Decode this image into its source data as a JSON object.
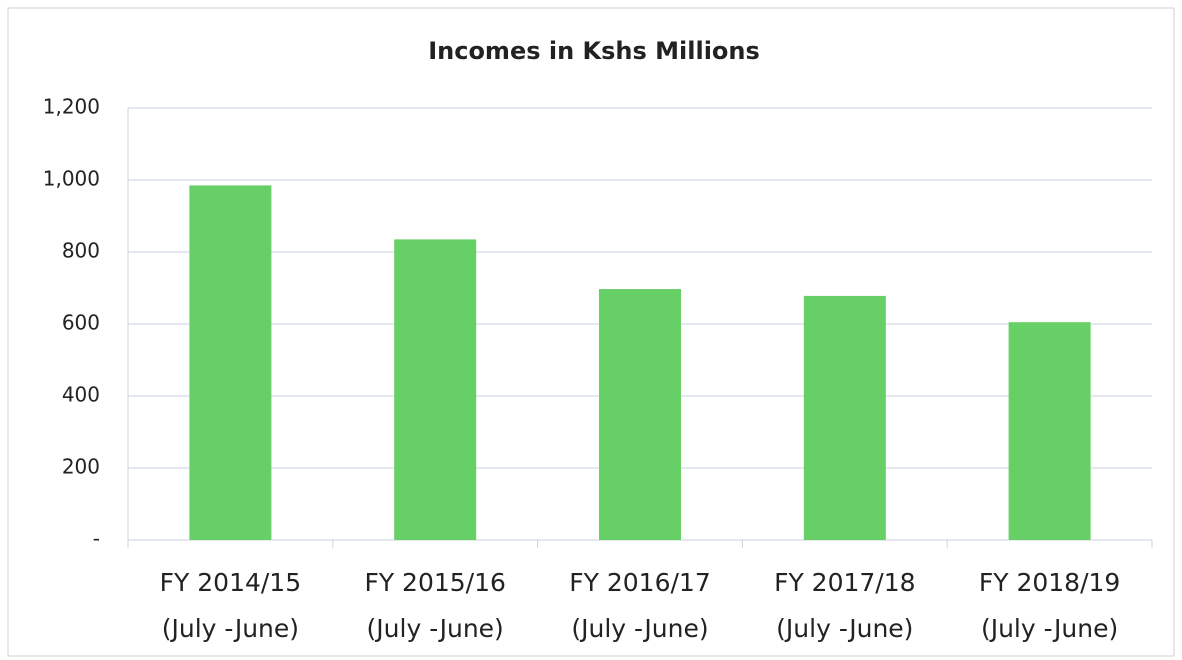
{
  "chart_data": {
    "type": "bar",
    "title": "Incomes in Kshs Millions",
    "categories": [
      [
        "FY 2014/15",
        "(July -June)"
      ],
      [
        "FY 2015/16",
        "(July -June)"
      ],
      [
        "FY 2016/17",
        "(July -June)"
      ],
      [
        "FY 2017/18",
        "(July -June)"
      ],
      [
        "FY 2018/19",
        "(July -June)"
      ]
    ],
    "values": [
      985,
      835,
      697,
      678,
      605
    ],
    "color": "#66cf66",
    "ylim": [
      0,
      1200
    ],
    "yticks": [
      {
        "value": 0,
        "label": "-"
      },
      200,
      400,
      600,
      800,
      {
        "value": 1000,
        "label": "1,000"
      },
      {
        "value": 1200,
        "label": "1,200"
      }
    ],
    "grid": true
  }
}
